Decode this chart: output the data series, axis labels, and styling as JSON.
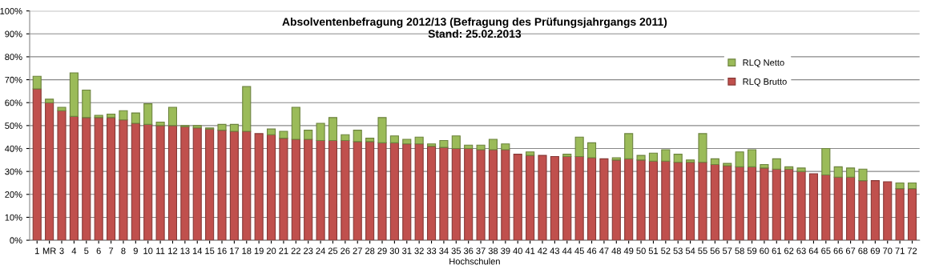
{
  "chart_data": {
    "type": "bar",
    "title": "Absolventenbefragung 2012/13 (Befragung des Prüfungsjahrgangs 2011)",
    "subtitle": "Stand: 25.02.2013",
    "xlabel": "Hochschulen",
    "categories": [
      "1",
      "MR",
      "3",
      "4",
      "5",
      "6",
      "7",
      "8",
      "9",
      "10",
      "11",
      "12",
      "13",
      "14",
      "15",
      "16",
      "17",
      "18",
      "19",
      "20",
      "21",
      "22",
      "23",
      "24",
      "25",
      "26",
      "27",
      "28",
      "29",
      "30",
      "31",
      "32",
      "33",
      "34",
      "35",
      "36",
      "37",
      "38",
      "39",
      "40",
      "41",
      "42",
      "43",
      "44",
      "45",
      "46",
      "47",
      "48",
      "49",
      "50",
      "51",
      "52",
      "53",
      "54",
      "55",
      "56",
      "57",
      "58",
      "59",
      "60",
      "61",
      "62",
      "63",
      "64",
      "65",
      "66",
      "67",
      "68",
      "69",
      "70",
      "71",
      "72"
    ],
    "stacked": true,
    "series": [
      {
        "name": "RLQ Brutto",
        "color": "#c0504d",
        "values": [
          66,
          60,
          56.5,
          54,
          53.5,
          53.5,
          53.5,
          52.5,
          51,
          50.5,
          50,
          50,
          49.5,
          49,
          48.5,
          48,
          47.5,
          47.5,
          46.5,
          46,
          44.5,
          44,
          44,
          43.5,
          43.5,
          43.5,
          43,
          43,
          42.5,
          42.5,
          42,
          42,
          41,
          40.5,
          40,
          40,
          39.5,
          39.5,
          39.5,
          37.5,
          37,
          37,
          36.5,
          36.5,
          36.5,
          36,
          35.5,
          35,
          35.5,
          35,
          34.5,
          34.5,
          34,
          34,
          34,
          33,
          32.5,
          32,
          32,
          31.5,
          31,
          31,
          30,
          29,
          28.5,
          27.5,
          27.5,
          26,
          26,
          25.5,
          22.5,
          22.5
        ]
      },
      {
        "name": "RLQ Netto",
        "color": "#9bbb59",
        "values": [
          5.5,
          1.5,
          1.5,
          19,
          12,
          1,
          1.5,
          4,
          4.5,
          9,
          1.5,
          8,
          0.5,
          1,
          0.5,
          2.5,
          3,
          19.5,
          0,
          2.5,
          3,
          14,
          4,
          7.5,
          10,
          2.5,
          5,
          1.5,
          11,
          3,
          2,
          3,
          1,
          3,
          5.5,
          1.5,
          2,
          4.5,
          2.5,
          0,
          1.5,
          0,
          0,
          1,
          8.5,
          6.5,
          0,
          1,
          11,
          2,
          3.5,
          5,
          3.5,
          1,
          12.5,
          2.5,
          1,
          6.5,
          7.5,
          1.5,
          4.5,
          1,
          1.5,
          0,
          11.5,
          4.5,
          4,
          5,
          0,
          0,
          2.5,
          2.5
        ]
      }
    ],
    "ylim": [
      0,
      100
    ],
    "yticks": [
      {
        "value": 0,
        "label": "0%"
      },
      {
        "value": 10,
        "label": "10%"
      },
      {
        "value": 20,
        "label": "20%"
      },
      {
        "value": 30,
        "label": "30%"
      },
      {
        "value": 40,
        "label": "40%"
      },
      {
        "value": 50,
        "label": "50%"
      },
      {
        "value": 60,
        "label": "60%"
      },
      {
        "value": 70,
        "label": "70%"
      },
      {
        "value": 80,
        "label": "80%"
      },
      {
        "value": 90,
        "label": "90%"
      },
      {
        "value": 100,
        "label": "100%"
      }
    ],
    "grid": "y",
    "legend": "right"
  }
}
